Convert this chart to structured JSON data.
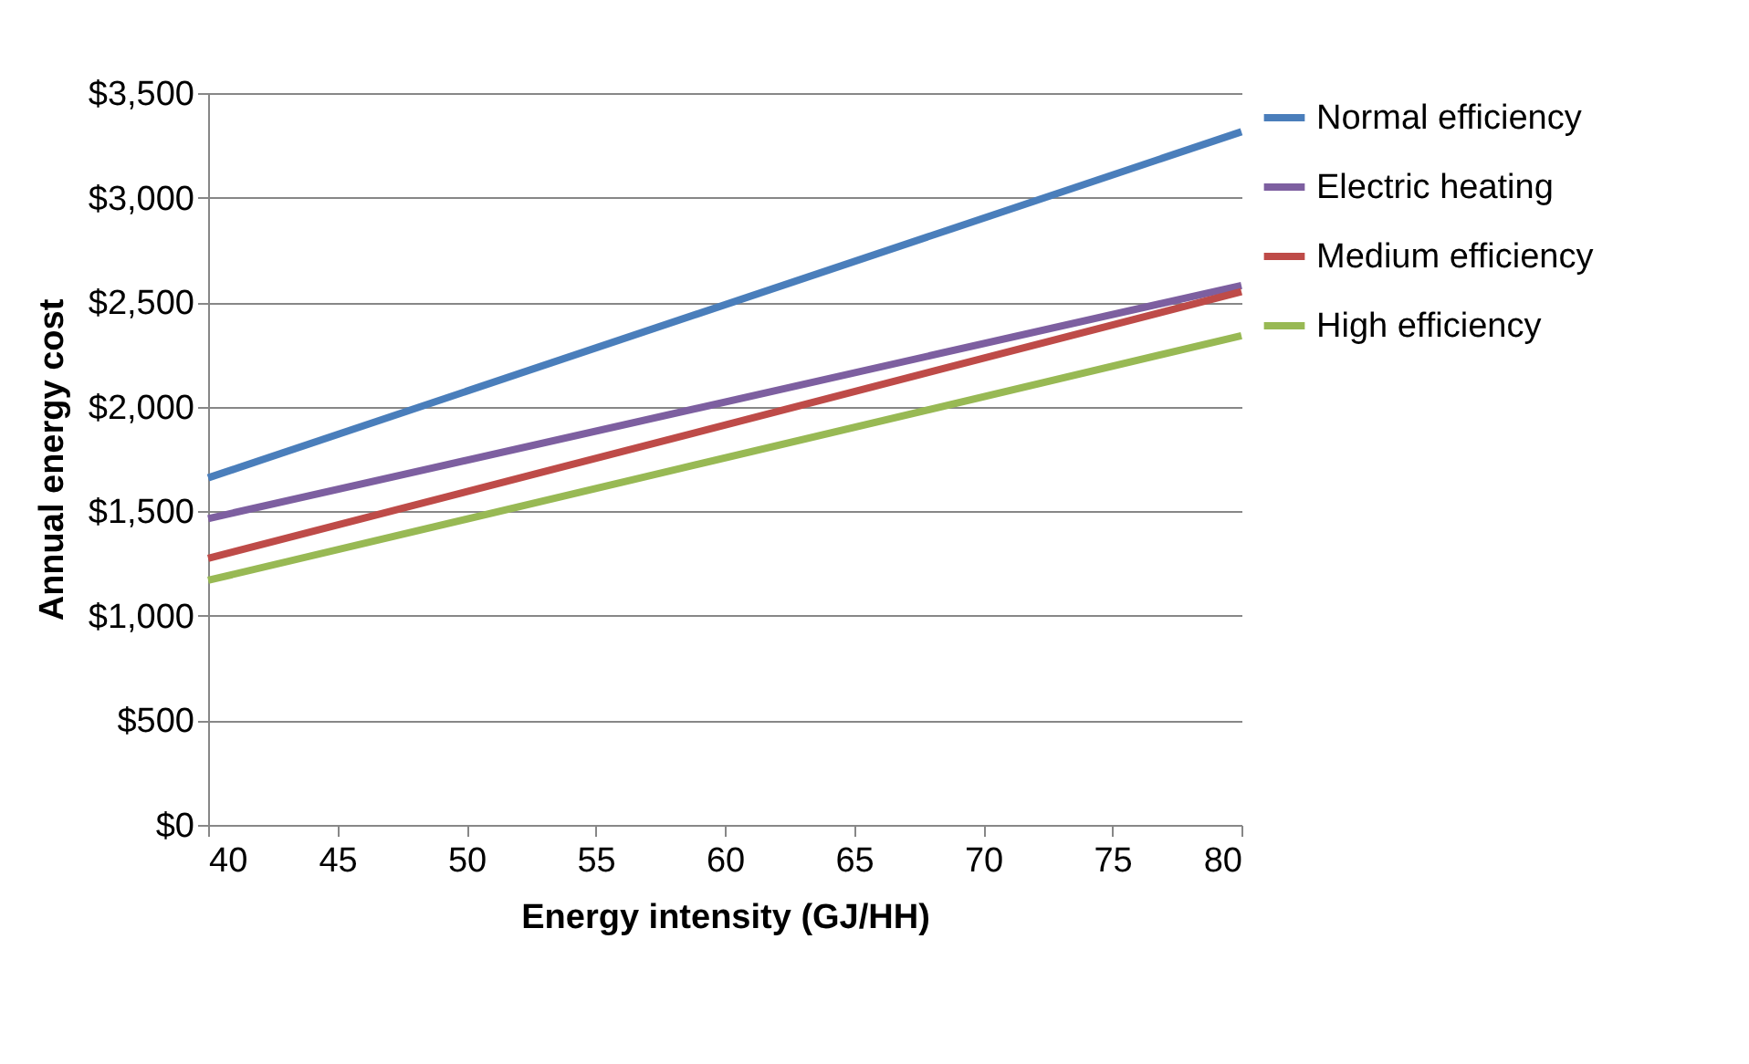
{
  "chart_data": {
    "type": "line",
    "xlabel": "Energy intensity (GJ/HH)",
    "ylabel": "Annual energy cost",
    "x": [
      40,
      80
    ],
    "series": [
      {
        "name": "Normal efficiency",
        "color": "#4a7ebb",
        "values": [
          1660,
          3315
        ]
      },
      {
        "name": "Electric heating",
        "color": "#7d5fa0",
        "values": [
          1465,
          2580
        ]
      },
      {
        "name": "Medium efficiency",
        "color": "#be4b48",
        "values": [
          1275,
          2550
        ]
      },
      {
        "name": "High efficiency",
        "color": "#98b954",
        "values": [
          1170,
          2340
        ]
      }
    ],
    "xlim": [
      40,
      80
    ],
    "xticks": [
      40,
      45,
      50,
      55,
      60,
      65,
      70,
      75,
      80
    ],
    "ylim": [
      0,
      3500
    ],
    "yticks": [
      {
        "value": 0,
        "label": "$0"
      },
      {
        "value": 500,
        "label": "$500"
      },
      {
        "value": 1000,
        "label": "$1,000"
      },
      {
        "value": 1500,
        "label": "$1,500"
      },
      {
        "value": 2000,
        "label": "$2,000"
      },
      {
        "value": 2500,
        "label": "$2,500"
      },
      {
        "value": 3000,
        "label": "$3,000"
      },
      {
        "value": 3500,
        "label": "$3,500"
      }
    ],
    "grid": "y",
    "legend": "right",
    "marker": "none",
    "line_style": "solid"
  }
}
